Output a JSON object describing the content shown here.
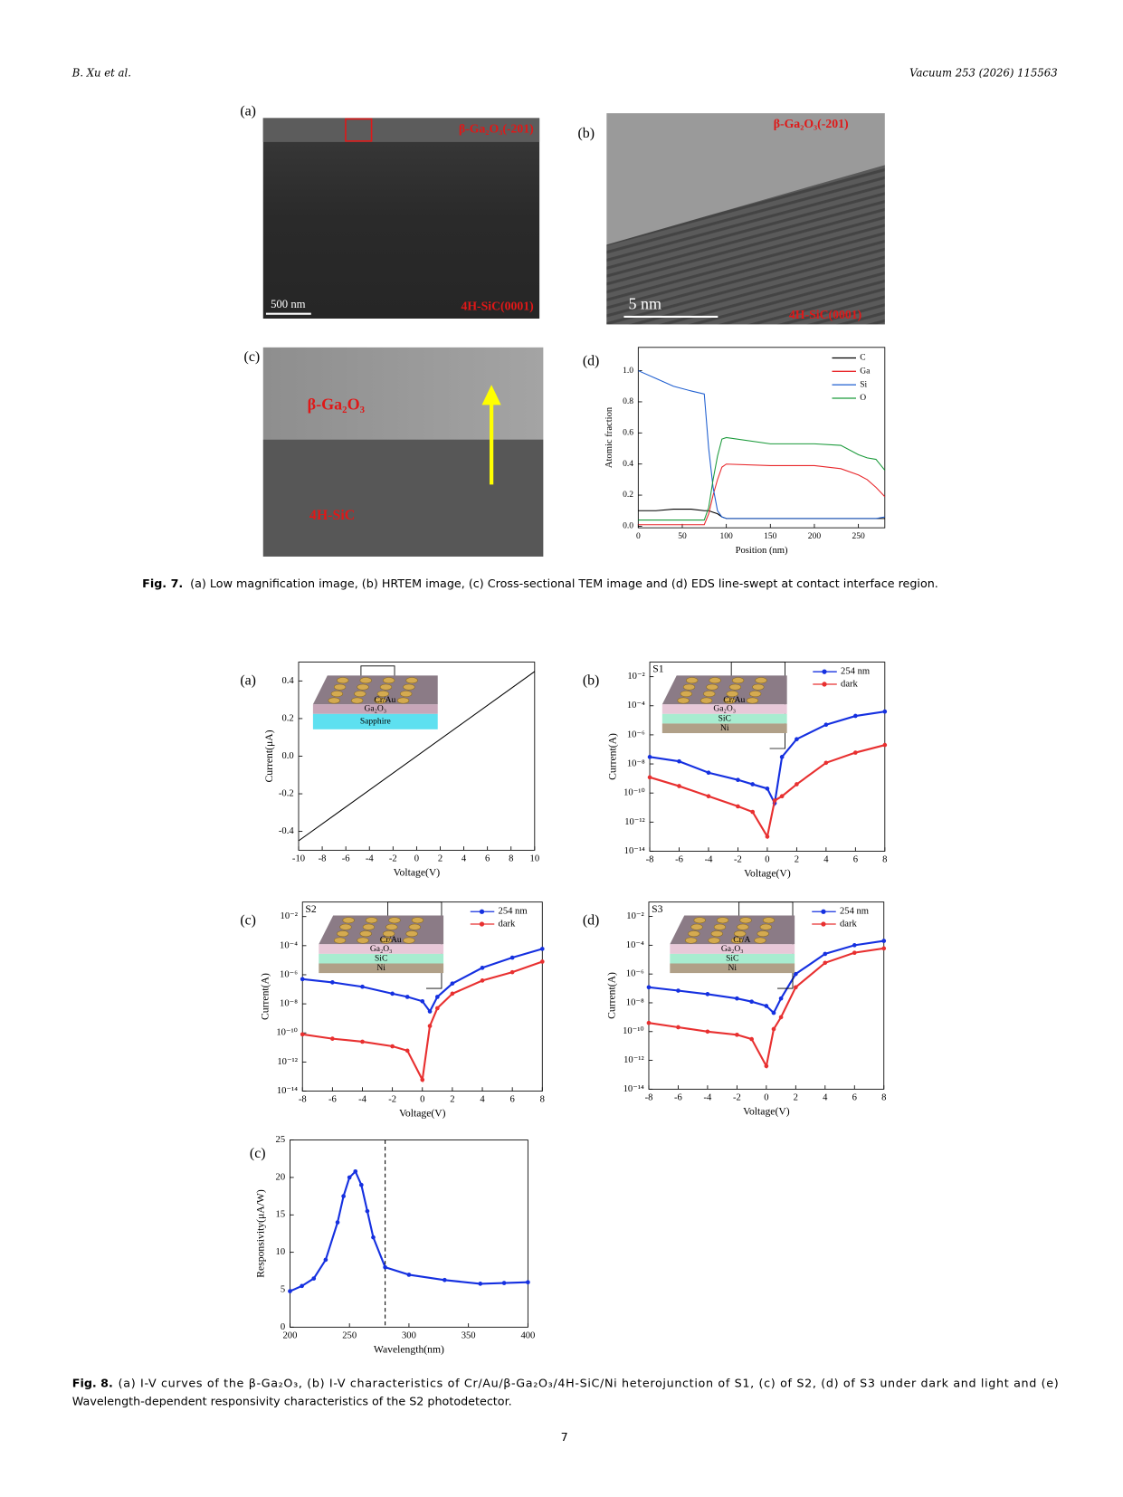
{
  "header": {
    "authors": "B. Xu et al.",
    "journal": "Vacuum 253 (2026) 115563"
  },
  "figure7": {
    "panels": [
      {
        "label": "(a)",
        "annotations": [
          "β-Ga₂O₃(-201)",
          "4H-SiC(0001)"
        ],
        "scale_bar": "500 nm"
      },
      {
        "label": "(b)",
        "annotations": [
          "β-Ga₂O₃(-201)",
          "4H-SiC(0001)"
        ],
        "scale_bar": "5 nm"
      },
      {
        "label": "(c)",
        "annotations": [
          "β-Ga₂O₃",
          "4H-SiC"
        ]
      },
      {
        "label": "(d)",
        "chart": {
          "type": "line",
          "x_label": "Position (nm)",
          "y_label": "Atomic fraction",
          "xlim": [
            0,
            280
          ],
          "ylim": [
            -0.01,
            1.15
          ],
          "xticks": [
            0,
            50,
            100,
            150,
            200,
            250
          ],
          "yticks": [
            {
              "value": 0,
              "label": "0.0"
            },
            0.2,
            0.4,
            0.6,
            0.8,
            {
              "value": 1,
              "label": "1.0"
            }
          ],
          "x": [
            0,
            20,
            40,
            60,
            75,
            80,
            85,
            90,
            95,
            100,
            150,
            200,
            230,
            250,
            260,
            270,
            280
          ],
          "series": [
            {
              "name": "C",
              "color": "#000000",
              "values": [
                0.1,
                0.1,
                0.11,
                0.11,
                0.1,
                0.1,
                0.09,
                0.08,
                0.06,
                0.05,
                0.05,
                0.05,
                0.05,
                0.05,
                0.05,
                0.05,
                0.05
              ]
            },
            {
              "name": "Ga",
              "color": "#e8262a",
              "values": [
                0.01,
                0.01,
                0.01,
                0.01,
                0.01,
                0.08,
                0.2,
                0.3,
                0.38,
                0.4,
                0.39,
                0.39,
                0.37,
                0.33,
                0.3,
                0.25,
                0.19
              ]
            },
            {
              "name": "Si",
              "color": "#1f5fd0",
              "values": [
                1.0,
                0.95,
                0.9,
                0.87,
                0.85,
                0.5,
                0.25,
                0.1,
                0.06,
                0.05,
                0.05,
                0.05,
                0.05,
                0.05,
                0.05,
                0.05,
                0.06
              ]
            },
            {
              "name": "O",
              "color": "#1a9a3a",
              "values": [
                0.04,
                0.04,
                0.04,
                0.04,
                0.04,
                0.12,
                0.3,
                0.45,
                0.56,
                0.57,
                0.53,
                0.53,
                0.52,
                0.46,
                0.44,
                0.43,
                0.36
              ]
            }
          ]
        }
      }
    ],
    "caption_label": "Fig. 7.",
    "caption": "(a) Low magnification image, (b) HRTEM image, (c) Cross-sectional TEM image and (d) EDS line-swept at contact interface region."
  },
  "figure8": {
    "panels": [
      {
        "label": "(a)",
        "inset": {
          "layers": [
            "Cr/Au",
            "Ga₂O₃",
            "Sapphire"
          ]
        },
        "chart": {
          "type": "line",
          "x_label": "Voltage(V)",
          "y_label": "Current(μA)",
          "xlim": [
            -10,
            10
          ],
          "ylim": [
            -0.5,
            0.5
          ],
          "xticks": [
            -10,
            -8,
            -6,
            -4,
            -2,
            0,
            2,
            4,
            6,
            8,
            10
          ],
          "yticks": [
            -0.4,
            -0.2,
            {
              "value": 0,
              "label": "0.0"
            },
            0.2,
            0.4
          ],
          "x": [
            -10,
            10
          ],
          "series": [
            {
              "color": "#000000",
              "values": [
                -0.45,
                0.45
              ]
            }
          ]
        }
      },
      {
        "label": "(b)",
        "inset": {
          "sample": "S1",
          "layers": [
            "Cr/Au",
            "Ga₂O₃",
            "SiC",
            "Ni"
          ]
        },
        "chart": {
          "type": "line",
          "log_y": true,
          "markers": true,
          "x_label": "Voltage(V)",
          "y_label": "Current(A)",
          "xlim": [
            -8,
            8
          ],
          "ylim": [
            1e-14,
            0.1
          ],
          "xticks": [
            -8,
            -6,
            -4,
            -2,
            0,
            2,
            4,
            6,
            8
          ],
          "yticks": [
            {
              "value": 1e-14,
              "label": "10⁻¹⁴"
            },
            {
              "value": 1e-12,
              "label": "10⁻¹²"
            },
            {
              "value": 1e-10,
              "label": "10⁻¹⁰"
            },
            {
              "value": 1e-08,
              "label": "10⁻⁸"
            },
            {
              "value": 1e-06,
              "label": "10⁻⁶"
            },
            {
              "value": 0.0001,
              "label": "10⁻⁴"
            },
            {
              "value": 0.01,
              "label": "10⁻²"
            }
          ],
          "x": [
            -8,
            -6,
            -4,
            -2,
            -1,
            0,
            0.5,
            1,
            2,
            4,
            6,
            8
          ],
          "series": [
            {
              "name": "254 nm",
              "color": "#1530e0",
              "values": [
                3e-08,
                1.5e-08,
                2.5e-09,
                8e-10,
                4e-10,
                2e-10,
                2e-11,
                3e-08,
                5e-07,
                5e-06,
                2e-05,
                4e-05
              ]
            },
            {
              "name": "dark",
              "color": "#e83030",
              "values": [
                1.2e-09,
                3e-10,
                6e-11,
                1.2e-11,
                5e-12,
                1e-13,
                3e-11,
                6e-11,
                4e-10,
                1.2e-08,
                6e-08,
                2e-07
              ]
            }
          ]
        }
      },
      {
        "label": "(c)",
        "inset": {
          "sample": "S2",
          "layers": [
            "Cr/Au",
            "Ga₂O₃",
            "SiC",
            "Ni"
          ]
        },
        "chart": {
          "type": "line",
          "log_y": true,
          "markers": true,
          "x_label": "Voltage(V)",
          "y_label": "Current(A)",
          "xlim": [
            -8,
            8
          ],
          "ylim": [
            1e-14,
            0.1
          ],
          "xticks": [
            -8,
            -6,
            -4,
            -2,
            0,
            2,
            4,
            6,
            8
          ],
          "yticks": [
            {
              "value": 1e-14,
              "label": "10⁻¹⁴"
            },
            {
              "value": 1e-12,
              "label": "10⁻¹²"
            },
            {
              "value": 1e-10,
              "label": "10⁻¹⁰"
            },
            {
              "value": 1e-08,
              "label": "10⁻⁸"
            },
            {
              "value": 1e-06,
              "label": "10⁻⁶"
            },
            {
              "value": 0.0001,
              "label": "10⁻⁴"
            },
            {
              "value": 0.01,
              "label": "10⁻²"
            }
          ],
          "x": [
            -8,
            -6,
            -4,
            -2,
            -1,
            0,
            0.5,
            1,
            2,
            4,
            6,
            8
          ],
          "series": [
            {
              "name": "254 nm",
              "color": "#1530e0",
              "values": [
                5e-07,
                3e-07,
                1.5e-07,
                5e-08,
                3e-08,
                1.5e-08,
                3e-09,
                3e-08,
                2.5e-07,
                3e-06,
                1.5e-05,
                6e-05
              ]
            },
            {
              "name": "dark",
              "color": "#e83030",
              "values": [
                8e-11,
                4e-11,
                2.5e-11,
                1.2e-11,
                6e-12,
                6e-14,
                3e-10,
                5e-09,
                5e-08,
                4e-07,
                1.5e-06,
                8e-06
              ]
            }
          ]
        }
      },
      {
        "label": "(d)",
        "inset": {
          "sample": "S3",
          "layers": [
            "Cr/A",
            "Ga₂O₃",
            "SiC",
            "Ni"
          ]
        },
        "chart": {
          "type": "line",
          "log_y": true,
          "markers": true,
          "x_label": "Voltage(V)",
          "y_label": "Current(A)",
          "xlim": [
            -8,
            8
          ],
          "ylim": [
            1e-14,
            0.1
          ],
          "xticks": [
            -8,
            -6,
            -4,
            -2,
            0,
            2,
            4,
            6,
            8
          ],
          "yticks": [
            {
              "value": 1e-14,
              "label": "10⁻¹⁴"
            },
            {
              "value": 1e-12,
              "label": "10⁻¹²"
            },
            {
              "value": 1e-10,
              "label": "10⁻¹⁰"
            },
            {
              "value": 1e-08,
              "label": "10⁻⁸"
            },
            {
              "value": 1e-06,
              "label": "10⁻⁶"
            },
            {
              "value": 0.0001,
              "label": "10⁻⁴"
            },
            {
              "value": 0.01,
              "label": "10⁻²"
            }
          ],
          "x": [
            -8,
            -6,
            -4,
            -2,
            -1,
            0,
            0.5,
            1,
            2,
            4,
            6,
            8
          ],
          "series": [
            {
              "name": "254 nm",
              "color": "#1530e0",
              "values": [
                1.2e-07,
                7e-08,
                4e-08,
                2e-08,
                1.2e-08,
                6e-09,
                2e-09,
                2e-08,
                1e-06,
                2.5e-05,
                0.0001,
                0.0002
              ]
            },
            {
              "name": "dark",
              "color": "#e83030",
              "values": [
                4e-10,
                2e-10,
                1e-10,
                6e-11,
                3e-11,
                4e-13,
                1.5e-10,
                1e-09,
                1.2e-07,
                6e-06,
                3e-05,
                6e-05
              ]
            }
          ]
        }
      },
      {
        "label": "(c)",
        "chart": {
          "type": "line",
          "markers": true,
          "x_label": "Wavelength(nm)",
          "y_label": "Responsivity(μA/W)",
          "xlim": [
            200,
            400
          ],
          "ylim": [
            0,
            25
          ],
          "xticks": [
            200,
            250,
            300,
            350,
            400
          ],
          "yticks": [
            0,
            5,
            10,
            15,
            20,
            25
          ],
          "reference_x": 280,
          "x": [
            200,
            210,
            220,
            230,
            240,
            245,
            250,
            255,
            260,
            265,
            270,
            280,
            300,
            330,
            360,
            380,
            400
          ],
          "series": [
            {
              "color": "#1530e0",
              "values": [
                4.8,
                5.5,
                6.5,
                9,
                14,
                17.5,
                20,
                20.8,
                19,
                15.5,
                12,
                8,
                7,
                6.3,
                5.8,
                5.9,
                6
              ]
            }
          ]
        }
      }
    ],
    "caption_label": "Fig. 8.",
    "caption_lines": [
      "(a) I-V curves of the β-Ga₂O₃, (b) I-V characteristics of Cr/Au/β-Ga₂O₃/4H-SiC/Ni heterojunction of S1, (c) of S2, (d) of S3 under dark and light and (e)",
      "Wavelength-dependent responsivity characteristics of the S2 photodetector."
    ]
  },
  "page_number": "7"
}
